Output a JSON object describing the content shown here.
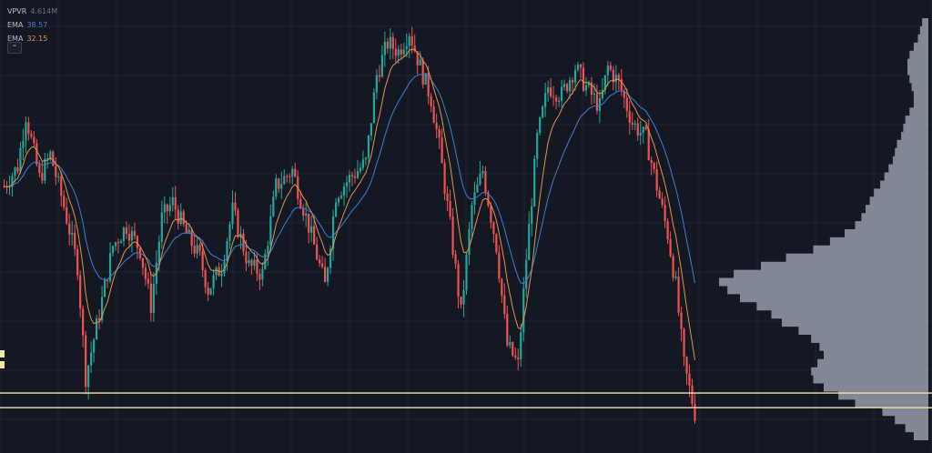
{
  "legend": {
    "vpvr": {
      "name": "VPVR",
      "value": "4.614M"
    },
    "ema_1": {
      "name": "EMA",
      "value": "38.57"
    },
    "ema_2": {
      "name": "EMA",
      "value": "32.15"
    },
    "collapse_icon": "chevron-up-icon"
  },
  "colors": {
    "background": "#141823",
    "grid": "#1e2330",
    "candle_up": "#26a69a",
    "candle_down": "#ef5350",
    "ema_slow": "#3d7fd4",
    "ema_fast": "#e1954a",
    "volume_profile": "#9aa0ad",
    "level_line": "#f0e6a8"
  },
  "chart_data": {
    "type": "candlestick",
    "title": "",
    "price_axis": "hidden",
    "time_axis": "hidden",
    "grid": true,
    "y_range_relative": [
      0,
      100
    ],
    "price_path_keypoints": [
      [
        0,
        60
      ],
      [
        5,
        65
      ],
      [
        8,
        78
      ],
      [
        13,
        62
      ],
      [
        17,
        68
      ],
      [
        22,
        55
      ],
      [
        27,
        40
      ],
      [
        30,
        12
      ],
      [
        35,
        28
      ],
      [
        40,
        45
      ],
      [
        45,
        50
      ],
      [
        50,
        44
      ],
      [
        54,
        30
      ],
      [
        58,
        52
      ],
      [
        62,
        56
      ],
      [
        67,
        48
      ],
      [
        72,
        42
      ],
      [
        75,
        34
      ],
      [
        80,
        40
      ],
      [
        84,
        54
      ],
      [
        90,
        40
      ],
      [
        95,
        38
      ],
      [
        100,
        60
      ],
      [
        106,
        64
      ],
      [
        112,
        50
      ],
      [
        118,
        35
      ],
      [
        122,
        58
      ],
      [
        127,
        62
      ],
      [
        133,
        66
      ],
      [
        137,
        88
      ],
      [
        141,
        96
      ],
      [
        145,
        94
      ],
      [
        149,
        99
      ],
      [
        153,
        90
      ],
      [
        157,
        82
      ],
      [
        160,
        70
      ],
      [
        164,
        50
      ],
      [
        168,
        28
      ],
      [
        172,
        55
      ],
      [
        176,
        64
      ],
      [
        181,
        45
      ],
      [
        185,
        20
      ],
      [
        189,
        15
      ],
      [
        192,
        42
      ],
      [
        196,
        72
      ],
      [
        200,
        85
      ],
      [
        205,
        83
      ],
      [
        210,
        90
      ],
      [
        214,
        85
      ],
      [
        219,
        80
      ],
      [
        222,
        90
      ],
      [
        226,
        86
      ],
      [
        231,
        76
      ],
      [
        236,
        72
      ],
      [
        240,
        60
      ],
      [
        244,
        48
      ],
      [
        247,
        35
      ],
      [
        250,
        15
      ],
      [
        254,
        3
      ]
    ],
    "series": [
      {
        "name": "EMA",
        "value": "38.57",
        "period": "slow",
        "color": "#3d7fd4"
      },
      {
        "name": "EMA",
        "value": "32.15",
        "period": "fast",
        "color": "#e1954a"
      }
    ],
    "volume_profile": {
      "name": "VPVR",
      "total": "4.614M",
      "side": "right",
      "bins_top_to_bottom": [
        0.03,
        0.04,
        0.05,
        0.07,
        0.09,
        0.1,
        0.1,
        0.09,
        0.08,
        0.07,
        0.07,
        0.09,
        0.11,
        0.12,
        0.13,
        0.15,
        0.16,
        0.17,
        0.19,
        0.21,
        0.23,
        0.26,
        0.28,
        0.3,
        0.32,
        0.35,
        0.4,
        0.47,
        0.55,
        0.68,
        0.8,
        0.93,
        1.0,
        0.96,
        0.9,
        0.82,
        0.75,
        0.7,
        0.62,
        0.56,
        0.52,
        0.5,
        0.53,
        0.56,
        0.55,
        0.5,
        0.43,
        0.35,
        0.22,
        0.16,
        0.11,
        0.07
      ]
    },
    "horizontal_levels_relative": [
      8.0,
      4.3
    ]
  }
}
